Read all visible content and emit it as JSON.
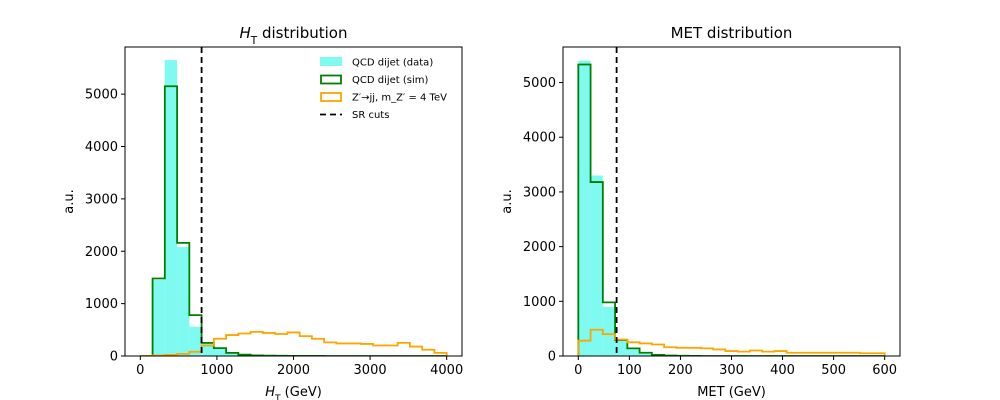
{
  "colors": {
    "data_fill": "#7ffaf0",
    "sim": "#008000",
    "signal": "#ffa500",
    "cut": "#000000"
  },
  "chart_data": [
    {
      "type": "histogram",
      "title": "H_T distribution",
      "xlabel": "H_T (GeV)",
      "ylabel": "a.u.",
      "xlim": [
        -200,
        4200
      ],
      "ylim": [
        0,
        5900
      ],
      "xticks": [
        0,
        1000,
        2000,
        3000,
        4000
      ],
      "yticks": [
        0,
        1000,
        2000,
        3000,
        4000,
        5000
      ],
      "bin_edges": [
        0,
        160,
        320,
        480,
        640,
        800,
        960,
        1120,
        1280,
        1440,
        1600,
        1760,
        1920,
        2080,
        2240,
        2400,
        2560,
        2720,
        2880,
        3040,
        3200,
        3360,
        3520,
        3680,
        3840,
        4000
      ],
      "legend_position": "upper right",
      "legend": [
        {
          "label": "QCD dijet (data)",
          "style": "fill",
          "series": "data"
        },
        {
          "label": "QCD dijet (sim)",
          "style": "step",
          "series": "sim"
        },
        {
          "label": "Z′→jj, m_Z′ = 4 TeV",
          "style": "step",
          "series": "signal"
        },
        {
          "label": "SR cuts",
          "style": "dashed",
          "series": "cut"
        }
      ],
      "series": [
        {
          "key": "data",
          "name": "QCD dijet (data)",
          "values": [
            0,
            1450,
            5650,
            2080,
            560,
            260,
            160,
            70,
            30,
            15,
            8,
            5,
            3,
            2,
            1,
            1,
            0,
            0,
            0,
            0,
            0,
            0,
            0,
            0,
            0
          ]
        },
        {
          "key": "sim",
          "name": "QCD dijet (sim)",
          "values": [
            0,
            1480,
            5150,
            2160,
            780,
            250,
            150,
            60,
            25,
            12,
            6,
            4,
            2,
            1,
            1,
            0,
            0,
            0,
            0,
            0,
            0,
            0,
            0,
            0,
            0
          ]
        },
        {
          "key": "signal",
          "name": "Z′→jj, m_Z′ = 4 TeV",
          "values": [
            0,
            10,
            20,
            40,
            80,
            200,
            330,
            400,
            430,
            460,
            440,
            420,
            450,
            380,
            330,
            260,
            240,
            240,
            230,
            200,
            200,
            250,
            180,
            120,
            60
          ]
        }
      ],
      "cut_x": 800
    },
    {
      "type": "histogram",
      "title": "MET distribution",
      "xlabel": "MET (GeV)",
      "ylabel": "a.u.",
      "xlim": [
        -30,
        630
      ],
      "ylim": [
        0,
        5650
      ],
      "xticks": [
        0,
        100,
        200,
        300,
        400,
        500,
        600
      ],
      "yticks": [
        0,
        1000,
        2000,
        3000,
        4000,
        5000
      ],
      "bin_edges": [
        0,
        24,
        48,
        72,
        96,
        120,
        144,
        168,
        192,
        216,
        240,
        264,
        288,
        312,
        336,
        360,
        384,
        408,
        432,
        456,
        480,
        504,
        528,
        552,
        576,
        600
      ],
      "series": [
        {
          "key": "data",
          "name": "QCD dijet (data)",
          "values": [
            5400,
            3300,
            900,
            320,
            120,
            40,
            15,
            5,
            2,
            1,
            0,
            0,
            0,
            0,
            0,
            0,
            0,
            0,
            0,
            0,
            0,
            0,
            0,
            0,
            0
          ]
        },
        {
          "key": "sim",
          "name": "QCD dijet (sim)",
          "values": [
            5330,
            3180,
            980,
            290,
            140,
            60,
            20,
            8,
            3,
            1,
            0,
            0,
            0,
            0,
            0,
            0,
            0,
            0,
            0,
            0,
            0,
            0,
            0,
            0,
            0
          ]
        },
        {
          "key": "signal",
          "name": "Z′→jj, m_Z′ = 4 TeV",
          "values": [
            280,
            480,
            400,
            300,
            250,
            230,
            210,
            160,
            150,
            150,
            140,
            120,
            90,
            80,
            100,
            80,
            90,
            60,
            60,
            60,
            60,
            60,
            60,
            50,
            50
          ]
        }
      ],
      "cut_x": 75
    }
  ]
}
